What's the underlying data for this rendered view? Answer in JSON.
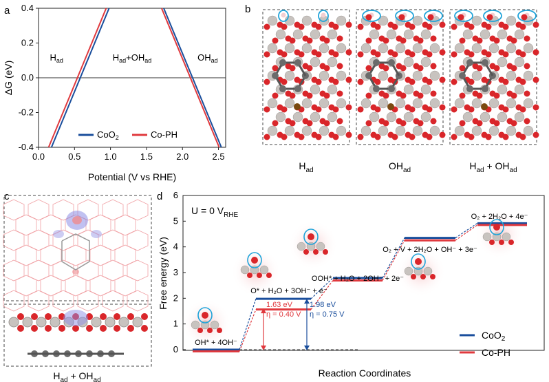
{
  "panel_labels": {
    "a": "a",
    "b": "b",
    "c": "c",
    "d": "d"
  },
  "colors": {
    "coo2": "#1a4e9c",
    "coph": "#e0393e",
    "atom_o": "#d9262a",
    "atom_co": "#c8c3bf",
    "atom_c": "#6b6b6b",
    "atom_h": "#f2cfd2",
    "highlight": "#1fa3d9"
  },
  "panel_b": {
    "structure_labels": [
      {
        "main": "H",
        "sub": "ad",
        "suffix": ""
      },
      {
        "main": "OH",
        "sub": "ad",
        "suffix": ""
      },
      {
        "main": "H",
        "sub": "ad",
        "suffix": " + OH",
        "sub2": "ad"
      }
    ]
  },
  "panel_c": {
    "caption_main": "H",
    "caption_sub": "ad",
    "caption_mid": " + OH",
    "caption_sub2": "ad"
  },
  "chart_data": [
    {
      "type": "line",
      "xlabel": "Potential (V vs RHE)",
      "ylabel": "ΔG (eV)",
      "xlim": [
        0.0,
        2.6
      ],
      "ylim": [
        -0.4,
        0.4
      ],
      "xticks": [
        "0.0",
        "0.5",
        "1.0",
        "1.5",
        "2.0",
        "2.5"
      ],
      "yticks": [
        "-0.4",
        "-0.2",
        "0.0",
        "0.2",
        "0.4"
      ],
      "region_labels": [
        {
          "main": "H",
          "sub": "ad",
          "x": 0.25,
          "y": 0.1
        },
        {
          "main": "H",
          "sub": "ad",
          "mid": "+OH",
          "sub2": "ad",
          "x": 1.3,
          "y": 0.1
        },
        {
          "main": "OH",
          "sub": "ad",
          "x": 2.35,
          "y": 0.1
        }
      ],
      "series": [
        {
          "name": "CoO",
          "name_sub": "2",
          "segments": [
            {
              "x": [
                0.18,
                0.98
              ],
              "y": [
                -0.4,
                0.4
              ]
            },
            {
              "x": [
                1.74,
                2.54
              ],
              "y": [
                0.4,
                -0.4
              ]
            }
          ]
        },
        {
          "name": "Co-PH",
          "segments": [
            {
              "x": [
                0.14,
                0.94
              ],
              "y": [
                -0.4,
                0.4
              ]
            },
            {
              "x": [
                1.71,
                2.51
              ],
              "y": [
                0.4,
                -0.4
              ]
            }
          ]
        }
      ],
      "zero_line": 0.0,
      "legend_position": "bottom-center"
    },
    {
      "type": "line",
      "title_main": "U = 0 V",
      "title_sub": "RHE",
      "xlabel": "Reaction Coordinates",
      "ylabel": "Free energy (eV)",
      "ylim": [
        0,
        6
      ],
      "yticks": [
        "0",
        "1",
        "2",
        "3",
        "4",
        "5",
        "6"
      ],
      "steps": [
        {
          "label": "OH* + 4OH⁻"
        },
        {
          "label": "O* + H₂O + 3OH⁻ + e⁻"
        },
        {
          "label": "OOH* + H₂O + 2OH⁻ + 2e⁻"
        },
        {
          "label": "O₂ + V + 2H₂O + OH⁻ + 3e⁻"
        },
        {
          "label": "O₂ + 2H₂O + 4e⁻"
        }
      ],
      "series": [
        {
          "name": "CoO",
          "name_sub": "2",
          "values": [
            0.0,
            1.98,
            2.79,
            4.35,
            4.92
          ]
        },
        {
          "name": "Co-PH",
          "values": [
            0.0,
            1.63,
            2.76,
            4.32,
            4.92
          ]
        }
      ],
      "annotations": [
        {
          "series": "Co-PH",
          "energy": "1.63 eV",
          "eta": "η = 0.40 V"
        },
        {
          "series": "CoO2",
          "energy": "1.98 eV",
          "eta": "η = 0.75 V"
        }
      ],
      "legend_position": "bottom-right"
    }
  ]
}
